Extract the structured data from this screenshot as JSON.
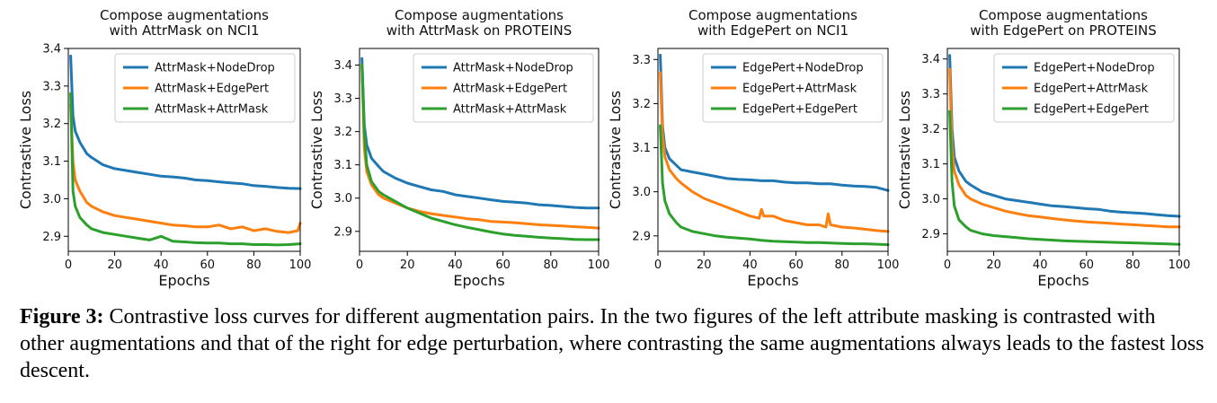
{
  "caption": {
    "label": "Figure 3:",
    "text": "Contrastive loss curves for different augmentation pairs. In the two figures of the left attribute masking is contrasted with other augmentations and that of the right for edge perturbation, where contrasting the same augmentations always leads to the fastest loss descent."
  },
  "chart_data": [
    {
      "type": "line",
      "title": [
        "Compose augmentations",
        "with AttrMask on NCI1"
      ],
      "xlabel": "Epochs",
      "ylabel": "Contrastive Loss",
      "xlim": [
        0,
        100
      ],
      "ylim": [
        2.86,
        3.4
      ],
      "xticks": [
        0,
        20,
        40,
        60,
        80,
        100
      ],
      "yticks": [
        2.9,
        3.0,
        3.1,
        3.2,
        3.3,
        3.4
      ],
      "legend": "top-right",
      "series": [
        {
          "name": "AttrMask+NodeDrop",
          "color": "#1f77b4",
          "x": [
            1,
            2,
            3,
            5,
            8,
            10,
            15,
            20,
            25,
            30,
            35,
            40,
            45,
            50,
            55,
            60,
            65,
            70,
            75,
            80,
            85,
            90,
            95,
            100
          ],
          "y": [
            3.38,
            3.22,
            3.18,
            3.15,
            3.12,
            3.11,
            3.09,
            3.08,
            3.075,
            3.07,
            3.065,
            3.06,
            3.058,
            3.055,
            3.05,
            3.048,
            3.045,
            3.042,
            3.04,
            3.035,
            3.033,
            3.03,
            3.028,
            3.027
          ]
        },
        {
          "name": "AttrMask+EdgePert",
          "color": "#ff7f0e",
          "x": [
            1,
            2,
            3,
            5,
            8,
            10,
            15,
            20,
            25,
            30,
            35,
            40,
            45,
            50,
            55,
            60,
            65,
            70,
            75,
            80,
            85,
            90,
            95,
            99,
            100
          ],
          "y": [
            3.25,
            3.1,
            3.05,
            3.02,
            2.99,
            2.98,
            2.965,
            2.955,
            2.95,
            2.945,
            2.94,
            2.935,
            2.93,
            2.928,
            2.925,
            2.925,
            2.93,
            2.92,
            2.925,
            2.915,
            2.92,
            2.913,
            2.91,
            2.915,
            2.935
          ]
        },
        {
          "name": "AttrMask+AttrMask",
          "color": "#2ca02c",
          "x": [
            1,
            2,
            3,
            5,
            8,
            10,
            15,
            20,
            25,
            30,
            35,
            40,
            45,
            50,
            55,
            60,
            65,
            70,
            75,
            80,
            85,
            90,
            95,
            100
          ],
          "y": [
            3.28,
            3.02,
            2.98,
            2.95,
            2.93,
            2.92,
            2.91,
            2.905,
            2.9,
            2.895,
            2.89,
            2.9,
            2.887,
            2.885,
            2.883,
            2.882,
            2.882,
            2.88,
            2.88,
            2.878,
            2.878,
            2.877,
            2.878,
            2.88
          ]
        }
      ]
    },
    {
      "type": "line",
      "title": [
        "Compose augmentations",
        "with AttrMask on PROTEINS"
      ],
      "xlabel": "Epochs",
      "ylabel": "Contrastive Loss",
      "xlim": [
        0,
        100
      ],
      "ylim": [
        2.84,
        3.45
      ],
      "xticks": [
        0,
        20,
        40,
        60,
        80,
        100
      ],
      "yticks": [
        2.9,
        3.0,
        3.1,
        3.2,
        3.3,
        3.4
      ],
      "legend": "top-right",
      "series": [
        {
          "name": "AttrMask+NodeDrop",
          "color": "#1f77b4",
          "x": [
            1,
            2,
            3,
            5,
            8,
            10,
            15,
            20,
            25,
            30,
            35,
            40,
            45,
            50,
            55,
            60,
            65,
            70,
            75,
            80,
            85,
            90,
            95,
            100
          ],
          "y": [
            3.42,
            3.22,
            3.16,
            3.12,
            3.095,
            3.08,
            3.06,
            3.045,
            3.035,
            3.025,
            3.02,
            3.01,
            3.005,
            3.0,
            2.995,
            2.99,
            2.988,
            2.985,
            2.98,
            2.978,
            2.975,
            2.972,
            2.97,
            2.97
          ]
        },
        {
          "name": "AttrMask+EdgePert",
          "color": "#ff7f0e",
          "x": [
            1,
            2,
            3,
            5,
            8,
            10,
            15,
            20,
            25,
            30,
            35,
            40,
            45,
            50,
            55,
            60,
            65,
            70,
            75,
            80,
            85,
            90,
            95,
            100
          ],
          "y": [
            3.4,
            3.15,
            3.08,
            3.04,
            3.01,
            3.0,
            2.985,
            2.97,
            2.96,
            2.953,
            2.948,
            2.943,
            2.938,
            2.935,
            2.93,
            2.928,
            2.926,
            2.923,
            2.92,
            2.918,
            2.916,
            2.914,
            2.912,
            2.91
          ]
        },
        {
          "name": "AttrMask+AttrMask",
          "color": "#2ca02c",
          "x": [
            1,
            2,
            3,
            5,
            8,
            10,
            15,
            20,
            25,
            30,
            35,
            40,
            45,
            50,
            55,
            60,
            65,
            70,
            75,
            80,
            85,
            90,
            95,
            100
          ],
          "y": [
            3.4,
            3.2,
            3.1,
            3.05,
            3.02,
            3.01,
            2.99,
            2.97,
            2.955,
            2.94,
            2.93,
            2.92,
            2.912,
            2.905,
            2.898,
            2.892,
            2.888,
            2.885,
            2.882,
            2.88,
            2.878,
            2.876,
            2.875,
            2.875
          ]
        }
      ]
    },
    {
      "type": "line",
      "title": [
        "Compose augmentations",
        "with EdgePert on NCI1"
      ],
      "xlabel": "Epochs",
      "ylabel": "Contrastive Loss",
      "xlim": [
        0,
        100
      ],
      "ylim": [
        2.865,
        3.325
      ],
      "xticks": [
        0,
        20,
        40,
        60,
        80,
        100
      ],
      "yticks": [
        2.9,
        3.0,
        3.1,
        3.2,
        3.3
      ],
      "legend": "top-right",
      "series": [
        {
          "name": "EdgePert+NodeDrop",
          "color": "#1f77b4",
          "x": [
            1,
            2,
            3,
            5,
            8,
            10,
            15,
            20,
            25,
            30,
            35,
            40,
            45,
            50,
            55,
            60,
            65,
            70,
            75,
            80,
            85,
            90,
            95,
            100
          ],
          "y": [
            3.31,
            3.15,
            3.1,
            3.075,
            3.06,
            3.05,
            3.045,
            3.04,
            3.035,
            3.03,
            3.028,
            3.027,
            3.025,
            3.025,
            3.022,
            3.02,
            3.02,
            3.018,
            3.018,
            3.015,
            3.013,
            3.012,
            3.01,
            3.003
          ]
        },
        {
          "name": "EdgePert+AttrMask",
          "color": "#ff7f0e",
          "x": [
            1,
            2,
            3,
            5,
            8,
            10,
            15,
            20,
            25,
            30,
            35,
            40,
            44,
            45,
            46,
            50,
            55,
            60,
            65,
            70,
            73,
            74,
            75,
            80,
            85,
            90,
            95,
            100
          ],
          "y": [
            3.27,
            3.13,
            3.08,
            3.05,
            3.03,
            3.02,
            3.0,
            2.985,
            2.975,
            2.965,
            2.955,
            2.945,
            2.94,
            2.96,
            2.945,
            2.945,
            2.935,
            2.93,
            2.925,
            2.925,
            2.92,
            2.95,
            2.925,
            2.92,
            2.918,
            2.915,
            2.912,
            2.91
          ]
        },
        {
          "name": "EdgePert+EdgePert",
          "color": "#2ca02c",
          "x": [
            1,
            2,
            3,
            5,
            8,
            10,
            15,
            20,
            25,
            30,
            35,
            40,
            45,
            50,
            55,
            60,
            65,
            70,
            75,
            80,
            85,
            90,
            95,
            100
          ],
          "y": [
            3.15,
            3.02,
            2.98,
            2.95,
            2.93,
            2.92,
            2.91,
            2.905,
            2.9,
            2.897,
            2.895,
            2.893,
            2.89,
            2.888,
            2.887,
            2.886,
            2.885,
            2.885,
            2.884,
            2.883,
            2.882,
            2.882,
            2.881,
            2.88
          ]
        }
      ]
    },
    {
      "type": "line",
      "title": [
        "Compose augmentations",
        "with EdgePert on PROTEINS"
      ],
      "xlabel": "Epochs",
      "ylabel": "Contrastive Loss",
      "xlim": [
        0,
        100
      ],
      "ylim": [
        2.85,
        3.43
      ],
      "xticks": [
        0,
        20,
        40,
        60,
        80,
        100
      ],
      "yticks": [
        2.9,
        3.0,
        3.1,
        3.2,
        3.3,
        3.4
      ],
      "legend": "top-right",
      "series": [
        {
          "name": "EdgePert+NodeDrop",
          "color": "#1f77b4",
          "x": [
            1,
            2,
            3,
            5,
            8,
            10,
            15,
            20,
            25,
            30,
            35,
            40,
            45,
            50,
            55,
            60,
            65,
            70,
            75,
            80,
            85,
            90,
            95,
            100
          ],
          "y": [
            3.41,
            3.2,
            3.12,
            3.08,
            3.05,
            3.04,
            3.02,
            3.01,
            3.0,
            2.995,
            2.99,
            2.985,
            2.98,
            2.978,
            2.975,
            2.972,
            2.97,
            2.965,
            2.962,
            2.96,
            2.958,
            2.955,
            2.952,
            2.95
          ]
        },
        {
          "name": "EdgePert+AttrMask",
          "color": "#ff7f0e",
          "x": [
            1,
            2,
            3,
            5,
            8,
            10,
            15,
            20,
            25,
            30,
            35,
            40,
            45,
            50,
            55,
            60,
            65,
            70,
            75,
            80,
            85,
            90,
            95,
            100
          ],
          "y": [
            3.37,
            3.15,
            3.08,
            3.04,
            3.01,
            3.0,
            2.985,
            2.975,
            2.965,
            2.958,
            2.952,
            2.948,
            2.944,
            2.94,
            2.937,
            2.934,
            2.932,
            2.93,
            2.928,
            2.926,
            2.924,
            2.922,
            2.92,
            2.92
          ]
        },
        {
          "name": "EdgePert+EdgePert",
          "color": "#2ca02c",
          "x": [
            1,
            2,
            3,
            5,
            8,
            10,
            15,
            20,
            25,
            30,
            35,
            40,
            45,
            50,
            55,
            60,
            65,
            70,
            75,
            80,
            85,
            90,
            95,
            100
          ],
          "y": [
            3.25,
            3.05,
            2.98,
            2.94,
            2.92,
            2.91,
            2.9,
            2.895,
            2.892,
            2.889,
            2.886,
            2.884,
            2.882,
            2.88,
            2.879,
            2.878,
            2.877,
            2.876,
            2.875,
            2.874,
            2.873,
            2.872,
            2.871,
            2.87
          ]
        }
      ]
    }
  ]
}
